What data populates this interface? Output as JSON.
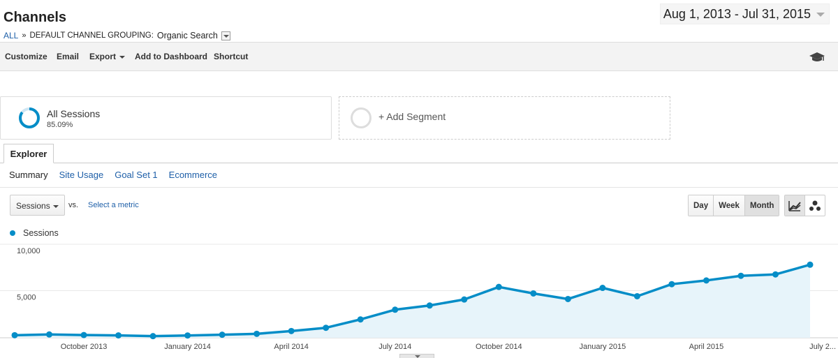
{
  "header": {
    "title": "Channels",
    "date_range": "Aug 1, 2013 - Jul 31, 2015"
  },
  "breadcrumb": {
    "root": "ALL",
    "separator": "»",
    "path": "DEFAULT CHANNEL GROUPING:",
    "current": "Organic Search"
  },
  "toolbar": {
    "customize": "Customize",
    "email": "Email",
    "export": "Export",
    "add_to_dashboard": "Add to Dashboard",
    "shortcut": "Shortcut"
  },
  "segments": {
    "all_sessions": "All Sessions",
    "all_sessions_pct": "85.09%",
    "all_sessions_fraction": 0.8509,
    "add_segment": "+ Add Segment"
  },
  "tabs": {
    "explorer": "Explorer",
    "subtabs": [
      "Summary",
      "Site Usage",
      "Goal Set 1",
      "Ecommerce"
    ]
  },
  "controls": {
    "metric": "Sessions",
    "vs": "vs.",
    "select_metric": "Select a metric",
    "granularity": [
      "Day",
      "Week",
      "Month"
    ],
    "selected_granularity": "Month"
  },
  "colors": {
    "series": "#058dc7",
    "area": "#e7f4fa",
    "link": "#1e5fa8"
  },
  "chart_data": {
    "type": "line",
    "series": [
      {
        "name": "Sessions",
        "x": [
          "Aug 2013",
          "Sep 2013",
          "Oct 2013",
          "Nov 2013",
          "Dec 2013",
          "Jan 2014",
          "Feb 2014",
          "Mar 2014",
          "Apr 2014",
          "May 2014",
          "Jun 2014",
          "Jul 2014",
          "Aug 2014",
          "Sep 2014",
          "Oct 2014",
          "Nov 2014",
          "Dec 2014",
          "Jan 2015",
          "Feb 2015",
          "Mar 2015",
          "Apr 2015",
          "May 2015",
          "Jun 2015",
          "Jul 2015"
        ],
        "values": [
          200,
          280,
          220,
          180,
          100,
          170,
          250,
          350,
          650,
          1000,
          1900,
          2950,
          3400,
          4050,
          5400,
          4700,
          4100,
          5300,
          4400,
          5700,
          6100,
          6600,
          6750,
          7800
        ]
      }
    ],
    "x_tick_labels": [
      "October 2013",
      "January 2014",
      "April 2014",
      "July 2014",
      "October 2014",
      "January 2015",
      "April 2015",
      "July 2..."
    ],
    "x_tick_indices": [
      2,
      5,
      8,
      11,
      14,
      17,
      20,
      23
    ],
    "y_tick_labels": [
      "10,000",
      "5,000"
    ],
    "y_tick_values": [
      10000,
      5000
    ],
    "ylim": [
      0,
      10000
    ],
    "grid": true
  }
}
